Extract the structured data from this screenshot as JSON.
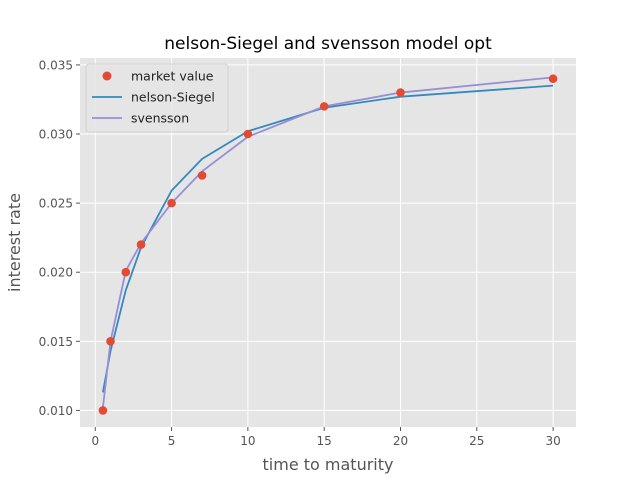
{
  "chart_data": {
    "type": "line",
    "title": "nelson-Siegel and svensson model opt",
    "xlabel": "time to maturity",
    "ylabel": "interest rate",
    "xlim": [
      -1,
      31.5
    ],
    "ylim": [
      0.0088,
      0.0355
    ],
    "x_ticks": [
      0,
      5,
      10,
      15,
      20,
      25,
      30
    ],
    "x_tick_labels": [
      "0",
      "5",
      "10",
      "15",
      "20",
      "25",
      "30"
    ],
    "y_ticks": [
      0.01,
      0.015,
      0.02,
      0.025,
      0.03,
      0.035
    ],
    "y_tick_labels": [
      "0.010",
      "0.015",
      "0.020",
      "0.025",
      "0.030",
      "0.035"
    ],
    "grid": true,
    "legend_position": "upper-left",
    "series": [
      {
        "name": "market value",
        "kind": "scatter",
        "color": "#E24A33",
        "x": [
          0.5,
          1,
          2,
          3,
          5,
          7,
          10,
          15,
          20,
          30
        ],
        "y": [
          0.01,
          0.015,
          0.02,
          0.022,
          0.025,
          0.027,
          0.03,
          0.032,
          0.033,
          0.034
        ]
      },
      {
        "name": "nelson-Siegel",
        "kind": "line",
        "color": "#348ABD",
        "x": [
          0.5,
          1,
          2,
          3,
          5,
          7,
          10,
          15,
          20,
          30
        ],
        "y": [
          0.0113,
          0.0143,
          0.0187,
          0.0218,
          0.0259,
          0.0282,
          0.0302,
          0.0319,
          0.0327,
          0.0335
        ]
      },
      {
        "name": "svensson",
        "kind": "line",
        "color": "#988ED5",
        "x": [
          0.5,
          1,
          2,
          3,
          5,
          7,
          10,
          15,
          20,
          30
        ],
        "y": [
          0.0102,
          0.015,
          0.0201,
          0.0221,
          0.025,
          0.0273,
          0.0298,
          0.032,
          0.033,
          0.0341
        ]
      }
    ]
  }
}
